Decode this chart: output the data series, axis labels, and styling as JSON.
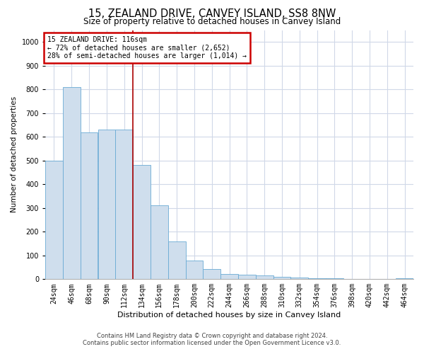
{
  "title": "15, ZEALAND DRIVE, CANVEY ISLAND, SS8 8NW",
  "subtitle": "Size of property relative to detached houses in Canvey Island",
  "xlabel": "Distribution of detached houses by size in Canvey Island",
  "ylabel": "Number of detached properties",
  "footnote1": "Contains HM Land Registry data © Crown copyright and database right 2024.",
  "footnote2": "Contains public sector information licensed under the Open Government Licence v3.0.",
  "categories": [
    "24sqm",
    "46sqm",
    "68sqm",
    "90sqm",
    "112sqm",
    "134sqm",
    "156sqm",
    "178sqm",
    "200sqm",
    "222sqm",
    "244sqm",
    "266sqm",
    "288sqm",
    "310sqm",
    "332sqm",
    "354sqm",
    "376sqm",
    "398sqm",
    "420sqm",
    "442sqm",
    "464sqm"
  ],
  "values": [
    500,
    810,
    620,
    630,
    630,
    480,
    310,
    160,
    80,
    42,
    22,
    20,
    15,
    10,
    7,
    5,
    3,
    2,
    1,
    1,
    5
  ],
  "bar_color": "#cfdeed",
  "bar_edge_color": "#6aaad4",
  "vline_x_index": 4.5,
  "annotation_text_title": "15 ZEALAND DRIVE: 116sqm",
  "annotation_text_line2": "← 72% of detached houses are smaller (2,652)",
  "annotation_text_line3": "28% of semi-detached houses are larger (1,014) →",
  "annotation_box_color": "white",
  "annotation_box_edge_color": "#cc0000",
  "vline_color": "#aa0000",
  "ylim": [
    0,
    1050
  ],
  "yticks": [
    0,
    100,
    200,
    300,
    400,
    500,
    600,
    700,
    800,
    900,
    1000
  ],
  "grid_color": "#d0d8e8",
  "background_color": "white",
  "title_fontsize": 10.5,
  "subtitle_fontsize": 8.5,
  "ylabel_fontsize": 7.5,
  "xlabel_fontsize": 8,
  "tick_fontsize": 7,
  "ann_fontsize": 7,
  "footnote_fontsize": 6
}
